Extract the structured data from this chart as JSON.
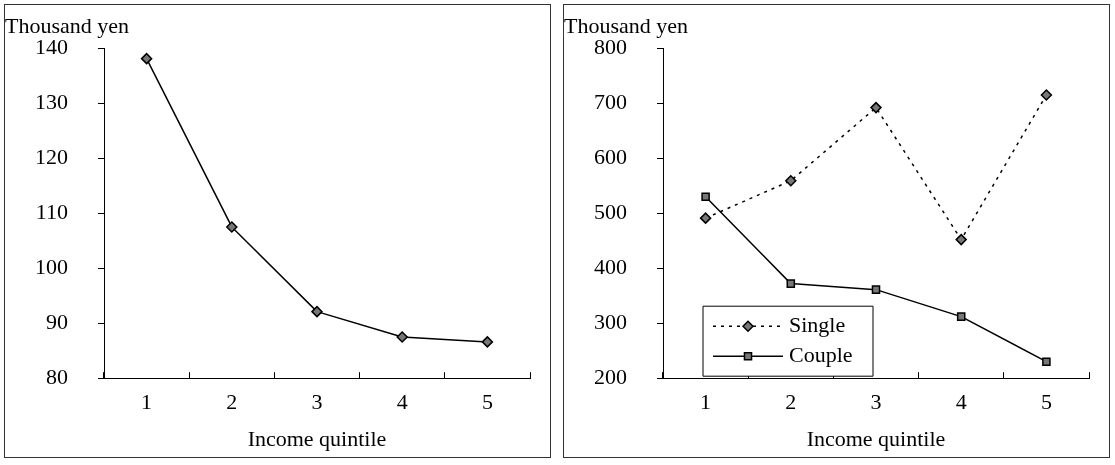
{
  "chart_data": [
    {
      "type": "line",
      "ylabel": "Thousand yen",
      "xlabel": "Income quintile",
      "categories": [
        "1",
        "2",
        "3",
        "4",
        "5"
      ],
      "values": [
        138.1,
        107.5,
        92.1,
        87.5,
        86.6
      ],
      "color": "#000000",
      "marker": "diamond",
      "line_style": "solid",
      "ylim": [
        80,
        140
      ],
      "yticks": [
        80,
        90,
        100,
        110,
        120,
        130,
        140
      ],
      "grid": false,
      "legend": false
    },
    {
      "type": "line",
      "ylabel": "Thousand yen",
      "xlabel": "Income quintile",
      "categories": [
        "1",
        "2",
        "3",
        "4",
        "5"
      ],
      "series": [
        {
          "name": "Single",
          "color": "#000000",
          "values": [
            491,
            559,
            692,
            452,
            715
          ],
          "marker": "diamond",
          "line_style": "dotted"
        },
        {
          "name": "Couple",
          "color": "#000000",
          "values": [
            530,
            372,
            361,
            312,
            230
          ],
          "marker": "square",
          "line_style": "solid"
        }
      ],
      "ylim": [
        200,
        800
      ],
      "yticks": [
        200,
        300,
        400,
        500,
        600,
        700,
        800
      ],
      "grid": false,
      "legend": "bottom left"
    }
  ]
}
